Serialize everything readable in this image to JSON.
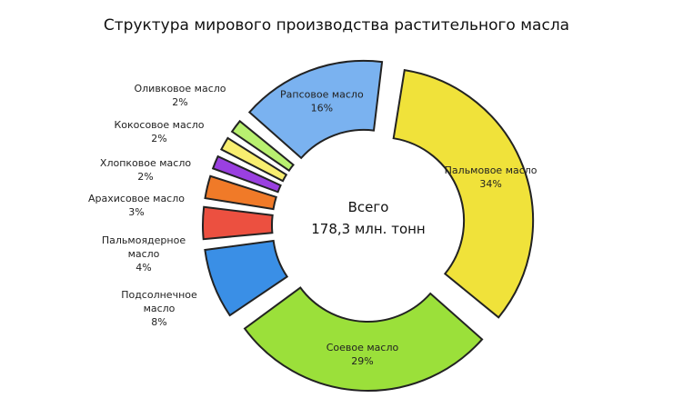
{
  "chart_data": {
    "type": "pie",
    "donut": true,
    "title": "Структура мирового производства растительного масла",
    "center_label": [
      "Всего",
      "178,3 млн. тонн"
    ],
    "unit": "%",
    "slices": [
      {
        "name": "Пальмовое масло",
        "value": 34,
        "label": "34%",
        "color": "#f0e23a"
      },
      {
        "name": "Соевое масло",
        "value": 29,
        "label": "29%",
        "color": "#9be03a"
      },
      {
        "name": "Подсолнечное масло",
        "value": 8,
        "label": "8%",
        "color": "#3a8fe6"
      },
      {
        "name": "Пальмоядерное масло",
        "value": 4,
        "label": "4%",
        "color": "#ec5040"
      },
      {
        "name": "Арахисовое масло",
        "value": 3,
        "label": "3%",
        "color": "#f07a28"
      },
      {
        "name": "Хлопковое масло",
        "value": 2,
        "label": "2%",
        "color": "#9a40e0"
      },
      {
        "name": "Кокосовое масло",
        "value": 2,
        "label": "2%",
        "color": "#f8ee70"
      },
      {
        "name": "Оливковое масло",
        "value": 2,
        "label": "2%",
        "color": "#b8f070"
      },
      {
        "name": "Рапсовое масло",
        "value": 16,
        "label": "16%",
        "color": "#7ab2f0"
      }
    ]
  }
}
